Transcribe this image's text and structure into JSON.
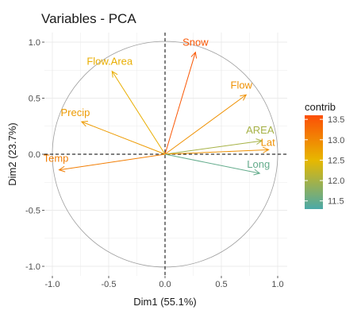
{
  "chart_data": {
    "type": "scatter",
    "title": "Variables - PCA",
    "xlabel": "Dim1 (55.1%)",
    "ylabel": "Dim2 (23.7%)",
    "xlim": [
      -1.0,
      1.0
    ],
    "ylim": [
      -1.0,
      1.0
    ],
    "x_ticks": [
      "-1.0",
      "-0.5",
      "0.0",
      "0.5",
      "1.0"
    ],
    "y_ticks": [
      "-1.0",
      "-0.5",
      "0.0",
      "0.5",
      "1.0"
    ],
    "grid": true,
    "correlation_circle": true,
    "legend": {
      "title": "contrib",
      "placement": "right",
      "range": [
        11.3,
        13.6
      ],
      "ticks": [
        "13.5",
        "13.0",
        "12.5",
        "12.0",
        "11.5"
      ]
    },
    "variables": [
      {
        "name": "Snow",
        "x": 0.27,
        "y": 0.91,
        "contrib": 13.5
      },
      {
        "name": "Flow.Area",
        "x": -0.47,
        "y": 0.74,
        "contrib": 12.6
      },
      {
        "name": "Flow",
        "x": 0.72,
        "y": 0.53,
        "contrib": 12.9
      },
      {
        "name": "Precip",
        "x": -0.74,
        "y": 0.29,
        "contrib": 12.8
      },
      {
        "name": "AREA",
        "x": 0.86,
        "y": 0.12,
        "contrib": 12.0
      },
      {
        "name": "Lat",
        "x": 0.92,
        "y": 0.04,
        "contrib": 12.9
      },
      {
        "name": "Temp",
        "x": -0.94,
        "y": -0.14,
        "contrib": 13.1
      },
      {
        "name": "Long",
        "x": 0.84,
        "y": -0.17,
        "contrib": 11.5
      }
    ],
    "colors": {
      "gradient": [
        "#4aa9a8",
        "#e7b800",
        "#fc4e07"
      ],
      "grid": "#ebebeb",
      "circle": "#9e9e9e"
    }
  }
}
